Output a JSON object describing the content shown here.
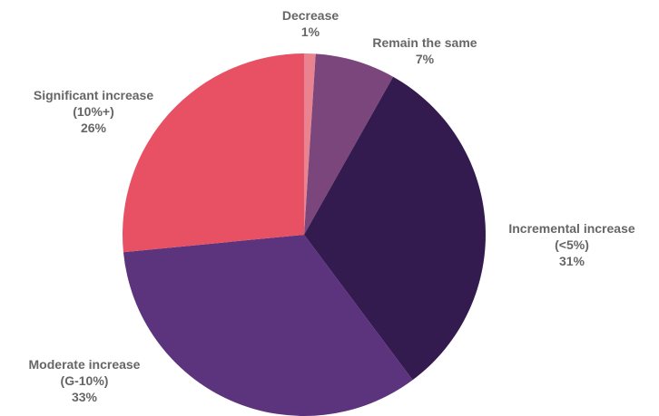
{
  "chart_data": {
    "type": "pie",
    "title": "",
    "slices": [
      {
        "label": "Decrease",
        "sublabel": "",
        "value": 1,
        "value_label": "1%",
        "color": "#e8838f"
      },
      {
        "label": "Remain the same",
        "sublabel": "",
        "value": 7,
        "value_label": "7%",
        "color": "#7b467b"
      },
      {
        "label": "Incremental increase",
        "sublabel": "(<5%)",
        "value": 31,
        "value_label": "31%",
        "color": "#331a4f"
      },
      {
        "label": "Moderate increase",
        "sublabel": "(G-10%)",
        "value": 33,
        "value_label": "33%",
        "color": "#5c347e"
      },
      {
        "label": "Significant increase",
        "sublabel": "(10%+)",
        "value": 26,
        "value_label": "26%",
        "color": "#e85163"
      }
    ],
    "legend": "none"
  }
}
